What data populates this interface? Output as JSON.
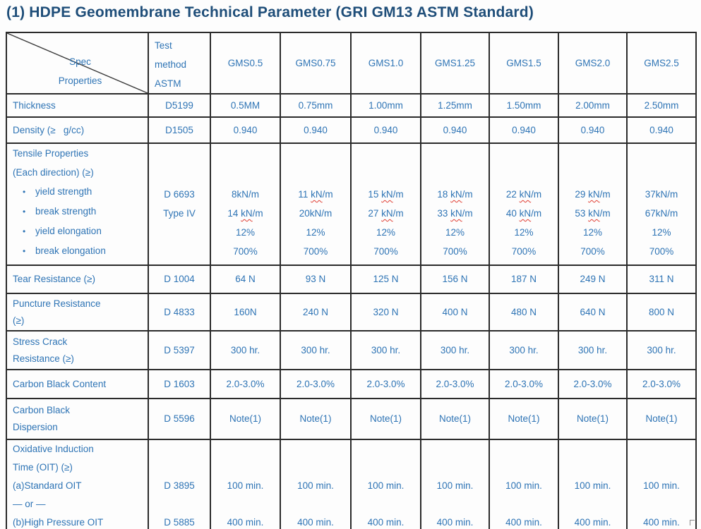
{
  "title": "(1) HDPE Geomembrane Technical Parameter (GRI GM13 ASTM Standard)",
  "colors": {
    "title_text": "#1F4E79",
    "body_text": "#2E74B5",
    "table_border": "#2b2b2b",
    "misspell_underline": "#E03C31",
    "background": "#fdfdfd"
  },
  "header": {
    "spec_label": "Spec",
    "properties_label": "Properties",
    "method_lines": [
      "Test",
      "method",
      "ASTM"
    ],
    "columns": [
      "GMS0.5",
      "GMS0.75",
      "GMS1.0",
      "GMS1.25",
      "GMS1.5",
      "GMS2.0",
      "GMS2.5"
    ]
  },
  "rows": {
    "thickness": {
      "label": "Thickness",
      "method": "D5199",
      "values": [
        "0.5MM",
        "0.75mm",
        "1.00mm",
        "1.25mm",
        "1.50mm",
        "2.00mm",
        "2.50mm"
      ]
    },
    "density": {
      "label": "Density (≥   g/cc)",
      "method": "D1505",
      "values": [
        "0.940",
        "0.940",
        "0.940",
        "0.940",
        "0.940",
        "0.940",
        "0.940"
      ]
    },
    "tensile": {
      "label_lines": [
        "Tensile Properties",
        "(Each direction) (≥)"
      ],
      "bullet_char": "•",
      "bullets": [
        "yield strength",
        "break strength",
        "yield elongation",
        "break elongation"
      ],
      "method_lines": [
        "D 6693",
        "Type IV"
      ],
      "columns": [
        [
          [
            [
              "8kN/m",
              0
            ]
          ],
          [
            [
              "14 ",
              0
            ],
            [
              "kN",
              1
            ],
            [
              "/m",
              0
            ]
          ],
          [
            [
              "12%",
              0
            ]
          ],
          [
            [
              "700%",
              0
            ]
          ]
        ],
        [
          [
            [
              "11 ",
              0
            ],
            [
              "kN",
              1
            ],
            [
              "/m",
              0
            ]
          ],
          [
            [
              "20kN/m",
              0
            ]
          ],
          [
            [
              "12%",
              0
            ]
          ],
          [
            [
              "700%",
              0
            ]
          ]
        ],
        [
          [
            [
              "15 ",
              0
            ],
            [
              "kN",
              1
            ],
            [
              "/m",
              0
            ]
          ],
          [
            [
              "27 ",
              0
            ],
            [
              "kN",
              1
            ],
            [
              "/m",
              0
            ]
          ],
          [
            [
              "12%",
              0
            ]
          ],
          [
            [
              "700%",
              0
            ]
          ]
        ],
        [
          [
            [
              "18 ",
              0
            ],
            [
              "kN",
              1
            ],
            [
              "/m",
              0
            ]
          ],
          [
            [
              "33 ",
              0
            ],
            [
              "kN",
              1
            ],
            [
              "/m",
              0
            ]
          ],
          [
            [
              "12%",
              0
            ]
          ],
          [
            [
              "700%",
              0
            ]
          ]
        ],
        [
          [
            [
              "22 ",
              0
            ],
            [
              "kN",
              1
            ],
            [
              "/m",
              0
            ]
          ],
          [
            [
              "40 ",
              0
            ],
            [
              "kN",
              1
            ],
            [
              "/m",
              0
            ]
          ],
          [
            [
              "12%",
              0
            ]
          ],
          [
            [
              "700%",
              0
            ]
          ]
        ],
        [
          [
            [
              "29 ",
              0
            ],
            [
              "kN",
              1
            ],
            [
              "/m",
              0
            ]
          ],
          [
            [
              "53 ",
              0
            ],
            [
              "kN",
              1
            ],
            [
              "/m",
              0
            ]
          ],
          [
            [
              "12%",
              0
            ]
          ],
          [
            [
              "700%",
              0
            ]
          ]
        ],
        [
          [
            [
              "37kN/m",
              0
            ]
          ],
          [
            [
              "67kN/m",
              0
            ]
          ],
          [
            [
              "12%",
              0
            ]
          ],
          [
            [
              "700%",
              0
            ]
          ]
        ]
      ]
    },
    "tear": {
      "label": "Tear Resistance (≥)",
      "method": "D 1004",
      "values": [
        "64 N",
        "93 N",
        "125 N",
        "156 N",
        "187 N",
        "249 N",
        "311 N"
      ]
    },
    "puncture": {
      "label_lines": [
        "Puncture Resistance",
        "(≥)"
      ],
      "method": "D 4833",
      "values": [
        "160N",
        "240 N",
        "320 N",
        "400 N",
        "480 N",
        "640 N",
        "800 N"
      ]
    },
    "stress_crack": {
      "label_lines": [
        "Stress Crack",
        "Resistance (≥)"
      ],
      "method": "D 5397",
      "values": [
        "300 hr.",
        "300 hr.",
        "300 hr.",
        "300 hr.",
        "300 hr.",
        "300 hr.",
        "300 hr."
      ]
    },
    "carbon_black_content": {
      "label": "Carbon Black Content",
      "method": "D 1603",
      "values": [
        "2.0-3.0%",
        "2.0-3.0%",
        "2.0-3.0%",
        "2.0-3.0%",
        "2.0-3.0%",
        "2.0-3.0%",
        "2.0-3.0%"
      ]
    },
    "carbon_black_dispersion": {
      "label_lines": [
        "Carbon Black",
        "Dispersion"
      ],
      "method": "D 5596",
      "values": [
        "Note(1)",
        "Note(1)",
        "Note(1)",
        "Note(1)",
        "Note(1)",
        "Note(1)",
        "Note(1)"
      ]
    },
    "oit": {
      "label_lines": [
        "Oxidative Induction",
        "Time (OIT) (≥)",
        "(a)Standard OIT",
        "— or —",
        "(b)High Pressure OIT"
      ],
      "method_standard": "D 3895",
      "method_high_pressure": "D 5885",
      "standard_values": [
        "100 min.",
        "100 min.",
        "100 min.",
        "100 min.",
        "100 min.",
        "100 min.",
        "100 min."
      ],
      "high_pressure_values": [
        "400 min.",
        "400 min.",
        "400 min.",
        "400 min.",
        "400 min.",
        "400 min.",
        "400 min."
      ]
    }
  }
}
